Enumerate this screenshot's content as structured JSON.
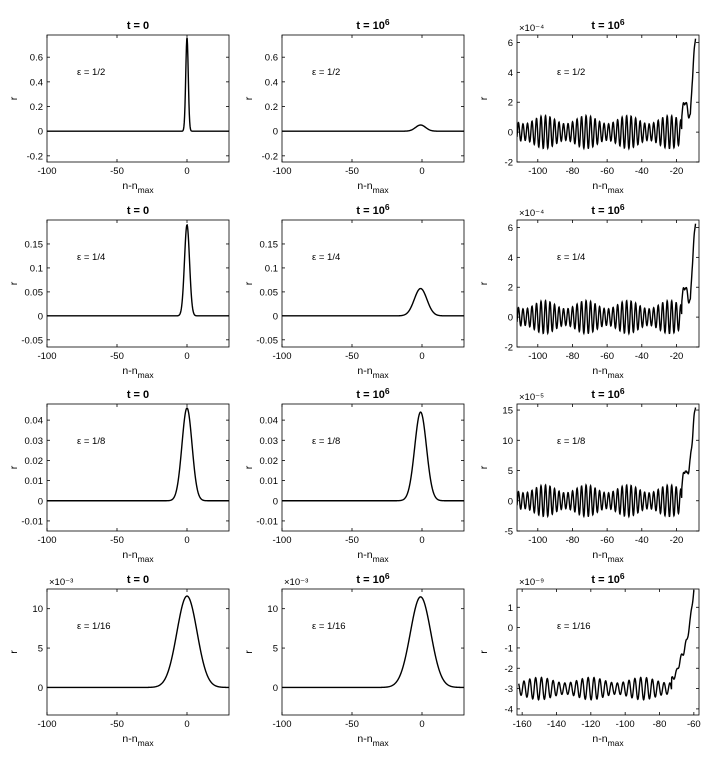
{
  "figure": {
    "xlabel_main": "n-n",
    "xlabel_sub": "max",
    "ylabel": "r",
    "panels": [
      {
        "id": "p-r0c0",
        "title": "t = 0",
        "title_exp": "",
        "eps": "ε = 1/2",
        "exponent": "",
        "xlim": [
          -100,
          30
        ],
        "ylim": [
          -0.25,
          0.78
        ],
        "xticks": [
          -100,
          -50,
          0
        ],
        "xtick_labels": [
          "-100",
          "-50",
          "0"
        ],
        "yticks": [
          -0.2,
          0,
          0.2,
          0.4,
          0.6
        ],
        "ytick_labels": [
          "-0.2",
          "0",
          "0.2",
          "0.4",
          "0.6"
        ]
      },
      {
        "id": "p-r0c1",
        "title": "t = 10",
        "title_exp": "6",
        "eps": "ε = 1/2",
        "exponent": "",
        "xlim": [
          -100,
          30
        ],
        "ylim": [
          -0.25,
          0.78
        ],
        "xticks": [
          -100,
          -50,
          0
        ],
        "xtick_labels": [
          "-100",
          "-50",
          "0"
        ],
        "yticks": [
          -0.2,
          0,
          0.2,
          0.4,
          0.6
        ],
        "ytick_labels": [
          "-0.2",
          "0",
          "0.2",
          "0.4",
          "0.6"
        ]
      },
      {
        "id": "p-r0c2",
        "title": "t = 10",
        "title_exp": "6",
        "eps": "ε = 1/2",
        "exponent": "×10⁻⁴",
        "xlim": [
          -112,
          -7
        ],
        "ylim": [
          -2,
          6.5
        ],
        "xticks": [
          -100,
          -80,
          -60,
          -40,
          -20
        ],
        "xtick_labels": [
          "-100",
          "-80",
          "-60",
          "-40",
          "-20"
        ],
        "yticks": [
          -2,
          0,
          2,
          4,
          6
        ],
        "ytick_labels": [
          "-2",
          "0",
          "2",
          "4",
          "6"
        ]
      },
      {
        "id": "p-r1c0",
        "title": "t = 0",
        "title_exp": "",
        "eps": "ε = 1/4",
        "exponent": "",
        "xlim": [
          -100,
          30
        ],
        "ylim": [
          -0.065,
          0.2
        ],
        "xticks": [
          -100,
          -50,
          0
        ],
        "xtick_labels": [
          "-100",
          "-50",
          "0"
        ],
        "yticks": [
          -0.05,
          0,
          0.05,
          0.1,
          0.15
        ],
        "ytick_labels": [
          "-0.05",
          "0",
          "0.05",
          "0.1",
          "0.15"
        ]
      },
      {
        "id": "p-r1c1",
        "title": "t = 10",
        "title_exp": "6",
        "eps": "ε = 1/4",
        "exponent": "",
        "xlim": [
          -100,
          30
        ],
        "ylim": [
          -0.065,
          0.2
        ],
        "xticks": [
          -100,
          -50,
          0
        ],
        "xtick_labels": [
          "-100",
          "-50",
          "0"
        ],
        "yticks": [
          -0.05,
          0,
          0.05,
          0.1,
          0.15
        ],
        "ytick_labels": [
          "-0.05",
          "0",
          "0.05",
          "0.1",
          "0.15"
        ]
      },
      {
        "id": "p-r1c2",
        "title": "t = 10",
        "title_exp": "6",
        "eps": "ε = 1/4",
        "exponent": "×10⁻⁴",
        "xlim": [
          -112,
          -7
        ],
        "ylim": [
          -2,
          6.5
        ],
        "xticks": [
          -100,
          -80,
          -60,
          -40,
          -20
        ],
        "xtick_labels": [
          "-100",
          "-80",
          "-60",
          "-40",
          "-20"
        ],
        "yticks": [
          -2,
          0,
          2,
          4,
          6
        ],
        "ytick_labels": [
          "-2",
          "0",
          "2",
          "4",
          "6"
        ]
      },
      {
        "id": "p-r2c0",
        "title": "t = 0",
        "title_exp": "",
        "eps": "ε = 1/8",
        "exponent": "",
        "xlim": [
          -100,
          30
        ],
        "ylim": [
          -0.015,
          0.048
        ],
        "xticks": [
          -100,
          -50,
          0
        ],
        "xtick_labels": [
          "-100",
          "-50",
          "0"
        ],
        "yticks": [
          -0.01,
          0,
          0.01,
          0.02,
          0.03,
          0.04
        ],
        "ytick_labels": [
          "-0.01",
          "0",
          "0.01",
          "0.02",
          "0.03",
          "0.04"
        ]
      },
      {
        "id": "p-r2c1",
        "title": "t = 10",
        "title_exp": "6",
        "eps": "ε = 1/8",
        "exponent": "",
        "xlim": [
          -100,
          30
        ],
        "ylim": [
          -0.015,
          0.048
        ],
        "xticks": [
          -100,
          -50,
          0
        ],
        "xtick_labels": [
          "-100",
          "-50",
          "0"
        ],
        "yticks": [
          -0.01,
          0,
          0.01,
          0.02,
          0.03,
          0.04
        ],
        "ytick_labels": [
          "-0.01",
          "0",
          "0.01",
          "0.02",
          "0.03",
          "0.04"
        ]
      },
      {
        "id": "p-r2c2",
        "title": "t = 10",
        "title_exp": "6",
        "eps": "ε = 1/8",
        "exponent": "×10⁻⁵",
        "xlim": [
          -112,
          -7
        ],
        "ylim": [
          -5,
          16
        ],
        "xticks": [
          -100,
          -80,
          -60,
          -40,
          -20
        ],
        "xtick_labels": [
          "-100",
          "-80",
          "-60",
          "-40",
          "-20"
        ],
        "yticks": [
          -5,
          0,
          5,
          10,
          15
        ],
        "ytick_labels": [
          "-5",
          "0",
          "5",
          "10",
          "15"
        ]
      },
      {
        "id": "p-r3c0",
        "title": "t = 0",
        "title_exp": "",
        "eps": "ε = 1/16",
        "exponent": "×10⁻³",
        "xlim": [
          -100,
          30
        ],
        "ylim": [
          -3.5,
          12.5
        ],
        "xticks": [
          -100,
          -50,
          0
        ],
        "xtick_labels": [
          "-100",
          "-50",
          "0"
        ],
        "yticks": [
          0,
          5,
          10
        ],
        "ytick_labels": [
          "0",
          "5",
          "10"
        ]
      },
      {
        "id": "p-r3c1",
        "title": "t = 10",
        "title_exp": "6",
        "eps": "ε = 1/16",
        "exponent": "×10⁻³",
        "xlim": [
          -100,
          30
        ],
        "ylim": [
          -3.5,
          12.5
        ],
        "xticks": [
          -100,
          -50,
          0
        ],
        "xtick_labels": [
          "-100",
          "-50",
          "0"
        ],
        "yticks": [
          0,
          5,
          10
        ],
        "ytick_labels": [
          "0",
          "5",
          "10"
        ]
      },
      {
        "id": "p-r3c2",
        "title": "t = 10",
        "title_exp": "6",
        "eps": "ε = 1/16",
        "exponent": "×10⁻⁹",
        "xlim": [
          -163,
          -57
        ],
        "ylim": [
          -4.3,
          1.9
        ],
        "xticks": [
          -160,
          -140,
          -120,
          -100,
          -80,
          -60
        ],
        "xtick_labels": [
          "-160",
          "-140",
          "-120",
          "-100",
          "-80",
          "-60"
        ],
        "yticks": [
          -4,
          -3,
          -2,
          -1,
          0,
          1
        ],
        "ytick_labels": [
          "-4",
          "-3",
          "-2",
          "-1",
          "0",
          "1"
        ]
      }
    ]
  },
  "chart_data": [
    {
      "type": "line",
      "panel": "p-r0c0",
      "title": "t = 0",
      "eps": "ε = 1/2",
      "xlabel": "n-n_max",
      "ylabel": "r",
      "curve": "pulse",
      "peak_x": 0,
      "peak_y": 0.76,
      "width": 0.9,
      "x": [
        -100,
        -5,
        -2,
        -1,
        0,
        1,
        2,
        5,
        30
      ],
      "y": [
        0,
        0,
        0.02,
        0.27,
        0.76,
        0.27,
        0.02,
        0,
        0
      ]
    },
    {
      "type": "line",
      "panel": "p-r0c1",
      "title": "t = 10^6",
      "eps": "ε = 1/2",
      "xlabel": "n-n_max",
      "ylabel": "r",
      "curve": "pulse",
      "peak_x": -1,
      "peak_y": 0.05,
      "width": 3.6,
      "x": [
        -100,
        -15,
        -8,
        -4,
        -1,
        2,
        6,
        13,
        30
      ],
      "y": [
        0,
        0,
        0.003,
        0.02,
        0.05,
        0.02,
        0.005,
        0,
        0
      ]
    },
    {
      "type": "line",
      "panel": "p-r0c2",
      "title": "t = 10^6",
      "eps": "ε = 1/2",
      "xlabel": "n-n_max",
      "ylabel": "r",
      "exponent": "×10^-4",
      "curve": "oscillation",
      "amplitude": 1.1,
      "period": 2.6,
      "beat_period": 24,
      "rise_x": [
        -17,
        -15,
        -14,
        -12,
        -11,
        -10,
        -9
      ],
      "rise_y": [
        1.2,
        2.2,
        1.6,
        0.9,
        3.4,
        4.9,
        6.5
      ],
      "x_range": [
        -112,
        -9
      ]
    },
    {
      "type": "line",
      "panel": "p-r1c0",
      "title": "t = 0",
      "eps": "ε = 1/4",
      "xlabel": "n-n_max",
      "ylabel": "r",
      "curve": "pulse",
      "peak_x": 0,
      "peak_y": 0.19,
      "width": 1.8,
      "x": [
        -100,
        -8,
        -4,
        -2,
        0,
        2,
        4,
        8,
        30
      ],
      "y": [
        0,
        0,
        0.02,
        0.1,
        0.19,
        0.1,
        0.02,
        0,
        0
      ]
    },
    {
      "type": "line",
      "panel": "p-r1c1",
      "title": "t = 10^6",
      "eps": "ε = 1/4",
      "xlabel": "n-n_max",
      "ylabel": "r",
      "curve": "pulse",
      "peak_x": -1,
      "peak_y": 0.057,
      "width": 4.5,
      "x": [
        -100,
        -18,
        -10,
        -5,
        -1,
        3,
        7,
        14,
        30
      ],
      "y": [
        0,
        0,
        0.004,
        0.025,
        0.057,
        0.027,
        0.006,
        0,
        0
      ]
    },
    {
      "type": "line",
      "panel": "p-r1c2",
      "title": "t = 10^6",
      "eps": "ε = 1/4",
      "xlabel": "n-n_max",
      "ylabel": "r",
      "exponent": "×10^-4",
      "curve": "oscillation",
      "amplitude": 1.1,
      "period": 2.6,
      "beat_period": 24,
      "rise_x": [
        -17,
        -15,
        -14,
        -12,
        -11,
        -10,
        -9
      ],
      "rise_y": [
        1.2,
        2.2,
        1.6,
        0.9,
        3.4,
        4.9,
        6.5
      ],
      "x_range": [
        -112,
        -9
      ]
    },
    {
      "type": "line",
      "panel": "p-r2c0",
      "title": "t = 0",
      "eps": "ε = 1/8",
      "xlabel": "n-n_max",
      "ylabel": "r",
      "curve": "pulse",
      "peak_x": 0,
      "peak_y": 0.046,
      "width": 3.6,
      "x": [
        -100,
        -15,
        -8,
        -4,
        0,
        4,
        8,
        15,
        30
      ],
      "y": [
        0,
        0,
        0.005,
        0.023,
        0.046,
        0.023,
        0.005,
        0,
        0
      ]
    },
    {
      "type": "line",
      "panel": "p-r2c1",
      "title": "t = 10^6",
      "eps": "ε = 1/8",
      "xlabel": "n-n_max",
      "ylabel": "r",
      "curve": "pulse",
      "peak_x": -1,
      "peak_y": 0.044,
      "width": 4.2,
      "x": [
        -100,
        -17,
        -9,
        -5,
        -1,
        3,
        7,
        14,
        30
      ],
      "y": [
        0,
        0,
        0.004,
        0.02,
        0.044,
        0.021,
        0.005,
        0,
        0
      ]
    },
    {
      "type": "line",
      "panel": "p-r2c2",
      "title": "t = 10^6",
      "eps": "ε = 1/8",
      "xlabel": "n-n_max",
      "ylabel": "r",
      "exponent": "×10^-5",
      "curve": "oscillation",
      "amplitude": 2.6,
      "period": 2.6,
      "beat_period": 24,
      "rise_x": [
        -17,
        -15,
        -14,
        -12,
        -11,
        -10,
        -9
      ],
      "rise_y": [
        2.5,
        5.5,
        4,
        6.5,
        10,
        13,
        16
      ],
      "x_range": [
        -112,
        -9
      ]
    },
    {
      "type": "line",
      "panel": "p-r3c0",
      "title": "t = 0",
      "eps": "ε = 1/16",
      "xlabel": "n-n_max",
      "ylabel": "r",
      "exponent": "×10^-3",
      "curve": "pulse",
      "peak_x": 0,
      "peak_y": 11.6,
      "width": 7.2,
      "x": [
        -100,
        -30,
        -16,
        -8,
        0,
        8,
        16,
        30
      ],
      "y": [
        0,
        0,
        1.2,
        5.8,
        11.6,
        5.8,
        1.2,
        0
      ]
    },
    {
      "type": "line",
      "panel": "p-r3c1",
      "title": "t = 10^6",
      "eps": "ε = 1/16",
      "xlabel": "n-n_max",
      "ylabel": "r",
      "exponent": "×10^-3",
      "curve": "pulse",
      "peak_x": -1,
      "peak_y": 11.5,
      "width": 7.3,
      "x": [
        -100,
        -31,
        -17,
        -9,
        -1,
        7,
        15,
        30
      ],
      "y": [
        0,
        0,
        1.2,
        5.7,
        11.5,
        5.9,
        1.3,
        0
      ]
    },
    {
      "type": "line",
      "panel": "p-r3c2",
      "title": "t = 10^6",
      "eps": "ε = 1/16",
      "xlabel": "n-n_max",
      "ylabel": "r",
      "exponent": "×10^-9",
      "curve": "oscillation",
      "baseline": -3,
      "amplitude": 0.55,
      "period": 3.4,
      "beat_period": 30,
      "rise_x": [
        -73,
        -70,
        -68,
        -66,
        -64,
        -62,
        -60
      ],
      "rise_y": [
        -2.6,
        -2.2,
        -1.6,
        -1.2,
        -0.6,
        0.4,
        1.9
      ],
      "x_range": [
        -162,
        -60
      ]
    }
  ]
}
